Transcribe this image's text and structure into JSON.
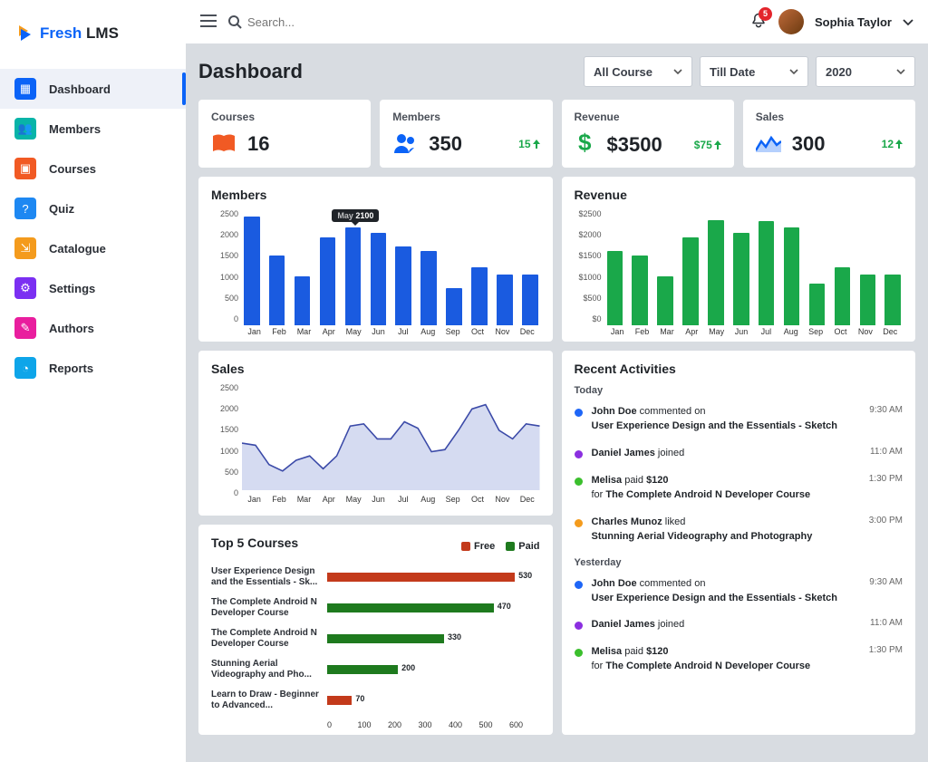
{
  "brand": {
    "name": "Fresh LMS",
    "logo_color_a": "#0b63f7",
    "logo_color_b": "#f49b1d",
    "name_color_a": "#0b63f7",
    "name_color_b": "#1f2328"
  },
  "topbar": {
    "search_placeholder": "Search...",
    "user_name": "Sophia Taylor",
    "notification_count": "5"
  },
  "sidebar": {
    "items": [
      {
        "label": "Dashboard",
        "icon_bg": "#0b63f7",
        "active": true
      },
      {
        "label": "Members",
        "icon_bg": "#08b4a8",
        "active": false
      },
      {
        "label": "Courses",
        "icon_bg": "#f15a24",
        "active": false
      },
      {
        "label": "Quiz",
        "icon_bg": "#1e88f2",
        "active": false
      },
      {
        "label": "Catalogue",
        "icon_bg": "#f49b1d",
        "active": false
      },
      {
        "label": "Settings",
        "icon_bg": "#7b2ff2",
        "active": false
      },
      {
        "label": "Authors",
        "icon_bg": "#e91e9e",
        "active": false
      },
      {
        "label": "Reports",
        "icon_bg": "#0ea5e9",
        "active": false
      }
    ]
  },
  "page": {
    "title": "Dashboard"
  },
  "filters": {
    "course": "All Course",
    "date": "Till Date",
    "year": "2020"
  },
  "cards": [
    {
      "label": "Courses",
      "value": "16",
      "delta": "",
      "icon_color": "#f15a24",
      "icon": "book"
    },
    {
      "label": "Members",
      "value": "350",
      "delta": "15",
      "icon_color": "#0b63f7",
      "icon": "users"
    },
    {
      "label": "Revenue",
      "value": "$3500",
      "delta": "$75",
      "icon_color": "#1aa84a",
      "icon": "dollar"
    },
    {
      "label": "Sales",
      "value": "300",
      "delta": "12",
      "icon_color": "#0b63f7",
      "icon": "area"
    }
  ],
  "members_chart": {
    "type": "bar",
    "title": "Members",
    "categories": [
      "Jan",
      "Feb",
      "Mar",
      "Apr",
      "May",
      "Jun",
      "Jul",
      "Aug",
      "Sep",
      "Oct",
      "Nov",
      "Dec"
    ],
    "values": [
      2350,
      1500,
      1050,
      1900,
      2100,
      2000,
      1700,
      1600,
      800,
      1250,
      1100,
      1100
    ],
    "bar_color": "#1a5be0",
    "ymax": 2500,
    "ymin": 0,
    "ytick_step": 500,
    "tooltip": {
      "label": "May",
      "value": "2100",
      "index": 4
    },
    "yticks": [
      "2500",
      "2000",
      "1500",
      "1000",
      "500",
      "0"
    ]
  },
  "revenue_chart": {
    "type": "bar",
    "title": "Revenue",
    "categories": [
      "Jan",
      "Feb",
      "Mar",
      "Apr",
      "May",
      "Jun",
      "Jul",
      "Aug",
      "Sep",
      "Oct",
      "Nov",
      "Dec"
    ],
    "values": [
      1600,
      1500,
      1050,
      1900,
      2270,
      2000,
      2250,
      2100,
      900,
      1250,
      1100,
      1100
    ],
    "bar_color": "#1aa84a",
    "ymax": 2500,
    "ymin": 0,
    "ytick_step": 500,
    "yticks": [
      "$2500",
      "$2000",
      "$1500",
      "$1000",
      "$500",
      "$0"
    ]
  },
  "sales_chart": {
    "type": "area",
    "title": "Sales",
    "categories": [
      "Jan",
      "Feb",
      "Mar",
      "Apr",
      "May",
      "Jun",
      "Jul",
      "Aug",
      "Sep",
      "Oct",
      "Nov",
      "Dec"
    ],
    "values": [
      1100,
      600,
      700,
      500,
      1500,
      1200,
      1600,
      900,
      1400,
      2000,
      1200,
      1500
    ],
    "line_color": "#3b4aa8",
    "fill_color": "rgba(88,110,200,0.25)",
    "ymax": 2500,
    "ymin": 0,
    "ytick_step": 500,
    "yticks": [
      "2500",
      "2000",
      "1500",
      "1000",
      "500",
      "0"
    ]
  },
  "top5": {
    "title": "Top 5 Courses",
    "legend": {
      "free": "Free",
      "free_color": "#c33a1b",
      "paid": "Paid",
      "paid_color": "#1e7a1e"
    },
    "xmax": 600,
    "rows": [
      {
        "label": "User Experience Design and the Essentials - Sk...",
        "value": 530,
        "color": "#c33a1b"
      },
      {
        "label": "The Complete Android N Developer Course",
        "value": 470,
        "color": "#1e7a1e"
      },
      {
        "label": "The Complete Android N Developer Course",
        "value": 330,
        "color": "#1e7a1e"
      },
      {
        "label": "Stunning Aerial Videography and Pho...",
        "value": 200,
        "color": "#1e7a1e"
      },
      {
        "label": "Learn to Draw - Beginner to Advanced...",
        "value": 70,
        "color": "#c33a1b"
      }
    ],
    "xticks": [
      "0",
      "100",
      "200",
      "300",
      "400",
      "500",
      "600"
    ]
  },
  "activities": {
    "title": "Recent Activities",
    "groups": [
      {
        "label": "Today",
        "items": [
          {
            "dot": "#1e66f7",
            "time": "9:30 AM",
            "who": "John Doe",
            "verb": " commented on",
            "target": "User Experience Design and the Essentials - Sketch"
          },
          {
            "dot": "#8b2fe0",
            "time": "11:0 AM",
            "who": "Daniel James",
            "verb": " joined",
            "target": ""
          },
          {
            "dot": "#3bbf2d",
            "time": "1:30 PM",
            "who": "Melisa",
            "verb": " paid ",
            "amount": "$120",
            "prefix": "for ",
            "target": "The Complete Android N Developer Course"
          },
          {
            "dot": "#f49b1d",
            "time": "3:00 PM",
            "who": "Charles Munoz",
            "verb": " liked",
            "target": "Stunning Aerial Videography and Photography"
          }
        ]
      },
      {
        "label": "Yesterday",
        "items": [
          {
            "dot": "#1e66f7",
            "time": "9:30 AM",
            "who": "John Doe",
            "verb": " commented on",
            "target": "User Experience Design and the Essentials - Sketch"
          },
          {
            "dot": "#8b2fe0",
            "time": "11:0 AM",
            "who": "Daniel James",
            "verb": " joined",
            "target": ""
          },
          {
            "dot": "#3bbf2d",
            "time": "1:30 PM",
            "who": "Melisa",
            "verb": " paid ",
            "amount": "$120",
            "prefix": "for ",
            "target": "The Complete Android N Developer Course"
          }
        ]
      }
    ]
  }
}
